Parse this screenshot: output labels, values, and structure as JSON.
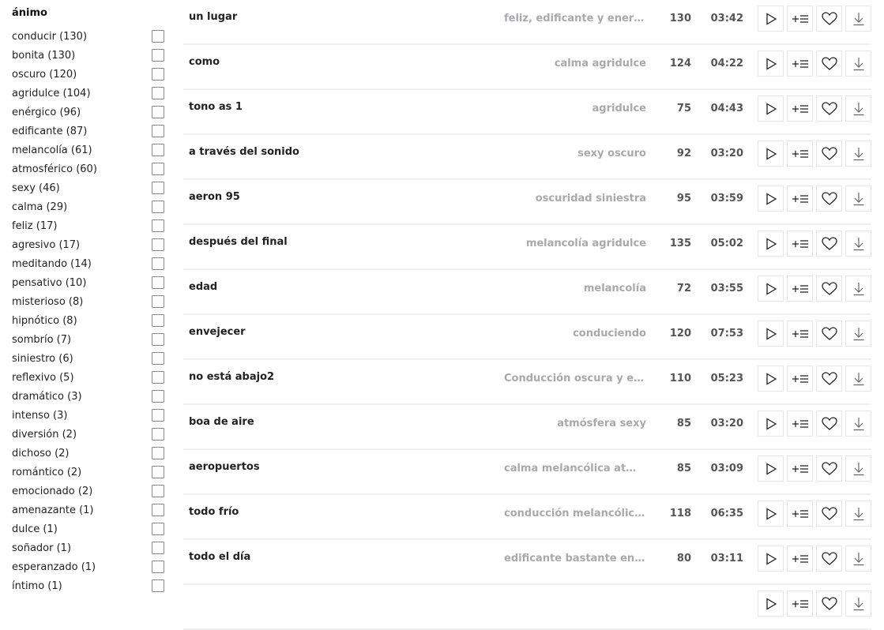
{
  "sidebar": {
    "title": "ánimo",
    "items": [
      "conducir (130)",
      "bonita (130)",
      "oscuro (120)",
      "agridulce (104)",
      "enérgico (96)",
      "edificante (87)",
      "melancolía (61)",
      "atmosférico (60)",
      "sexy (46)",
      "calma (29)",
      "feliz (17)",
      "agresivo (17)",
      "meditando (14)",
      "pensativo (10)",
      "misterioso (8)",
      "hipnótico (8)",
      "sombrío (7)",
      "siniestro (6)",
      "reflexivo (5)",
      "dramático (3)",
      "intenso (3)",
      "diversión (2)",
      "dichoso (2)",
      "romántico (2)",
      "emocionado (2)",
      "amenazante (1)",
      "dulce (1)",
      "soñador (1)",
      "esperanzado (1)",
      "íntimo (1)"
    ]
  },
  "tracks": [
    {
      "title": "un lugar",
      "mood": "feliz, edificante y energé...",
      "bpm": "130",
      "duration": "03:42"
    },
    {
      "title": "como",
      "mood": "calma agridulce",
      "bpm": "124",
      "duration": "04:22"
    },
    {
      "title": "tono as 1",
      "mood": "agridulce",
      "bpm": "75",
      "duration": "04:43"
    },
    {
      "title": "a través del sonido",
      "mood": "sexy oscuro",
      "bpm": "92",
      "duration": "03:20"
    },
    {
      "title": "aeron 95",
      "mood": "oscuridad siniestra",
      "bpm": "95",
      "duration": "03:59"
    },
    {
      "title": "después del final",
      "mood": "melancolía agridulce",
      "bpm": "135",
      "duration": "05:02"
    },
    {
      "title": "edad",
      "mood": "melancolía",
      "bpm": "72",
      "duration": "03:55"
    },
    {
      "title": "envejecer",
      "mood": "conduciendo",
      "bpm": "120",
      "duration": "07:53"
    },
    {
      "title": "no está abajo2",
      "mood": "Conducción oscura y en...",
      "bpm": "110",
      "duration": "05:23"
    },
    {
      "title": "boa de aire",
      "mood": "atmósfera sexy",
      "bpm": "85",
      "duration": "03:20"
    },
    {
      "title": "aeropuertos",
      "mood": "calma melancólica atmo...",
      "bpm": "85",
      "duration": "03:09"
    },
    {
      "title": "todo frío",
      "mood": "conducción melancólica ...",
      "bpm": "118",
      "duration": "06:35"
    },
    {
      "title": "todo el día",
      "mood": "edificante bastante enér...",
      "bpm": "80",
      "duration": "03:11"
    },
    {
      "title": "",
      "mood": "",
      "bpm": "",
      "duration": ""
    }
  ],
  "icons": {
    "play": "play-icon",
    "add": "add-to-playlist-icon",
    "like": "heart-icon",
    "download": "download-icon"
  }
}
